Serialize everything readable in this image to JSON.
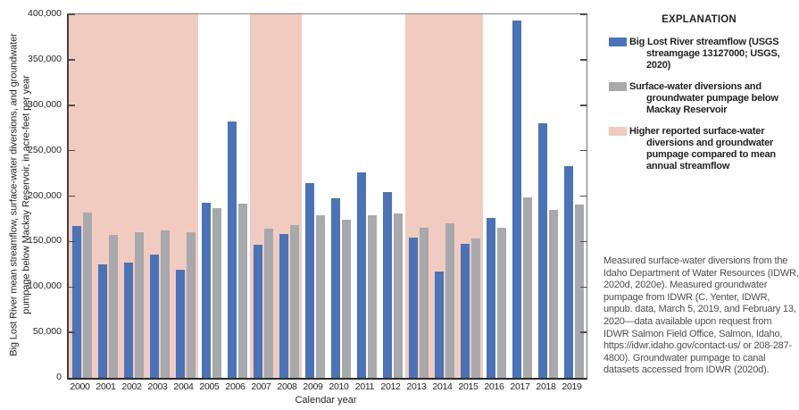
{
  "chart_data": {
    "type": "bar",
    "title": "",
    "xlabel": "Calendar year",
    "ylabel": "Big Lost River mean streamflow, surface-water diversions, and groundwater pumpage below Mackay Reservoir, in acre-feet per year",
    "ylabel_display": "Big Lost River mean streamflow, surface-water diversions, and groundwater\npumpage below Mackay Reservoir, in acre-feet per year",
    "ylim": [
      0,
      400000
    ],
    "ytick_interval": 50000,
    "ytick_labels": [
      "0",
      "50,000",
      "100,000",
      "150,000",
      "200,000",
      "250,000",
      "300,000",
      "350,000",
      "400,000"
    ],
    "grid": false,
    "legend_position": "right",
    "categories": [
      2000,
      2001,
      2002,
      2003,
      2004,
      2005,
      2006,
      2007,
      2008,
      2009,
      2010,
      2011,
      2012,
      2013,
      2014,
      2015,
      2016,
      2017,
      2018,
      2019
    ],
    "series": [
      {
        "name": "Big Lost River streamflow (USGS streamgage 13127000; USGS, 2020)",
        "color": "#4a73b8",
        "values": [
          167000,
          125000,
          127000,
          136000,
          119000,
          193000,
          282000,
          146000,
          158000,
          214000,
          198000,
          226000,
          204000,
          154000,
          117000,
          147000,
          176000,
          393000,
          280000,
          233000
        ]
      },
      {
        "name": "Surface-water diversions and groundwater pumpage below Mackay Reservoir",
        "color": "#a7a9ac",
        "values": [
          182000,
          157000,
          160000,
          162000,
          160000,
          187000,
          192000,
          164000,
          168000,
          179000,
          174000,
          179000,
          181000,
          165000,
          170000,
          153000,
          165000,
          199000,
          185000,
          191000
        ]
      }
    ],
    "highlight_bands": {
      "label": "Higher reported surface-water diversions and groundwater pumpage compared to mean annual streamflow",
      "color": "#f2cbc0",
      "year_ranges": [
        [
          2000,
          2004
        ],
        [
          2007,
          2008
        ],
        [
          2013,
          2015
        ]
      ]
    }
  },
  "legend": {
    "title": "EXPLANATION",
    "items": [
      {
        "color": "#4a73b8",
        "text": "Big Lost River streamflow (USGS\nstreamgage 13127000; USGS, 2020)"
      },
      {
        "color": "#a7a9ac",
        "text": "Surface-water diversions and\ngroundwater pumpage below\nMackay Reservoir"
      },
      {
        "color": "#f2cbc0",
        "text": "Higher reported surface-water\ndiversions and groundwater\npumpage compared to mean\nannual streamflow"
      }
    ]
  },
  "note": "Measured surface-water diversions from the Idaho Department of Water Resources (IDWR, 2020d, 2020e). Measured groundwater pumpage from IDWR (C. Yenter, IDWR, unpub. data, March 5, 2019, and February 13, 2020—data available upon request from IDWR Salmon Field Office, Salmon, Idaho, https://idwr.idaho.gov/contact-us/ or 208-287-4800). Groundwater pumpage to canal datasets accessed from IDWR (2020d)."
}
